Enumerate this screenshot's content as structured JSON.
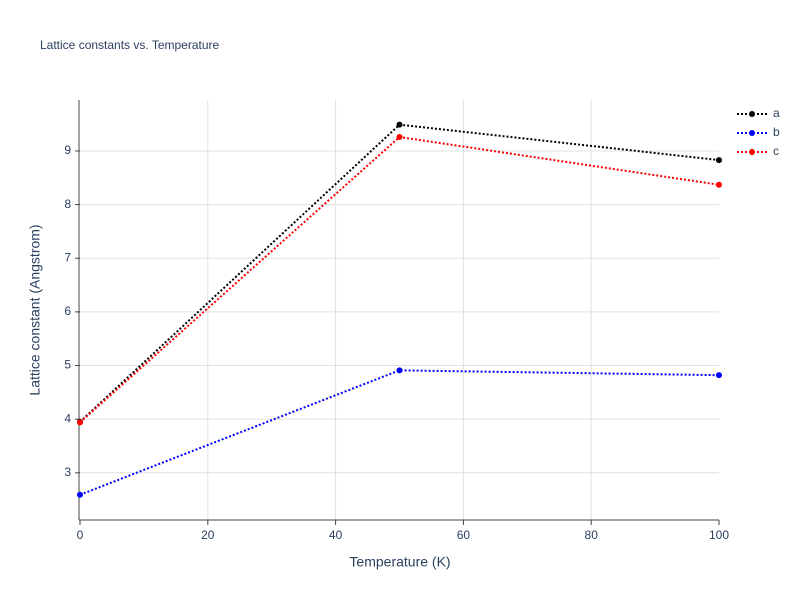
{
  "chart_data": {
    "type": "line",
    "title": "Lattice constants vs. Temperature",
    "x_label": "Temperature (K)",
    "y_label": "Lattice constant (Angstrom)",
    "x": [
      0,
      50,
      100
    ],
    "series": [
      {
        "name": "a",
        "color": "#000000",
        "values": [
          3.95,
          9.49,
          8.83
        ]
      },
      {
        "name": "b",
        "color": "#0000ff",
        "values": [
          2.59,
          4.91,
          4.82
        ]
      },
      {
        "name": "c",
        "color": "#ff0000",
        "values": [
          3.94,
          9.26,
          8.37
        ]
      }
    ],
    "xlim": [
      0,
      100
    ],
    "xticks": [
      0,
      20,
      40,
      60,
      80,
      100
    ],
    "ylim": [
      2.12,
      9.95
    ],
    "yticks": [
      3,
      4,
      5,
      6,
      7,
      8,
      9
    ],
    "grid": true,
    "legend": "top-right"
  }
}
